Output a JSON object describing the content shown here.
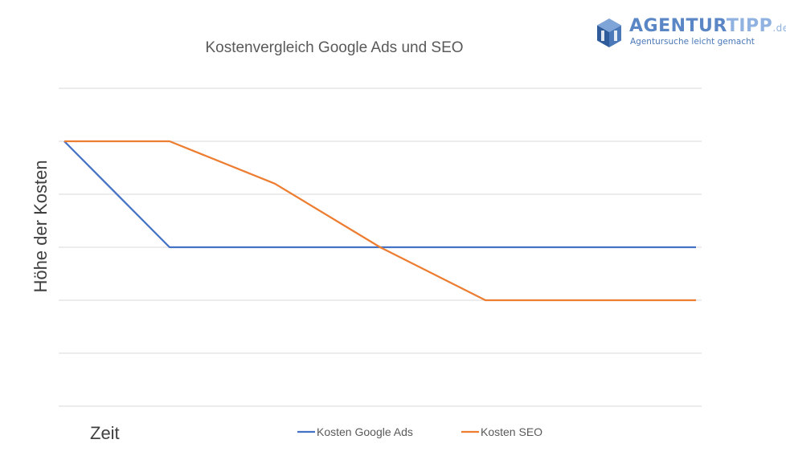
{
  "brand": {
    "name_part1": "AGENTUR",
    "name_part2": "TIPP",
    "tld": ".de",
    "tagline": "Agentursuche leicht gemacht",
    "colors": {
      "primary": "#4a78b8",
      "light": "#7fa4d8",
      "dark": "#2f5b9a"
    },
    "icon": "hexagon-cube-logo"
  },
  "chart_data": {
    "type": "line",
    "title": "Kostenvergleich Google Ads und SEO",
    "xlabel": "Zeit",
    "ylabel": "Höhe der Kosten",
    "x": [
      0,
      1,
      2,
      3,
      4,
      5,
      6
    ],
    "ylim": [
      0,
      6
    ],
    "grid": true,
    "tick_labels_shown": false,
    "legend_placement": "bottom",
    "series": [
      {
        "name": "Kosten Google Ads",
        "color": "#4472c4",
        "values": [
          5,
          3,
          3,
          3,
          3,
          3,
          3
        ]
      },
      {
        "name": "Kosten SEO",
        "color": "#ed7d31",
        "values": [
          5,
          5,
          4.2,
          3,
          2,
          2,
          2
        ]
      }
    ]
  }
}
